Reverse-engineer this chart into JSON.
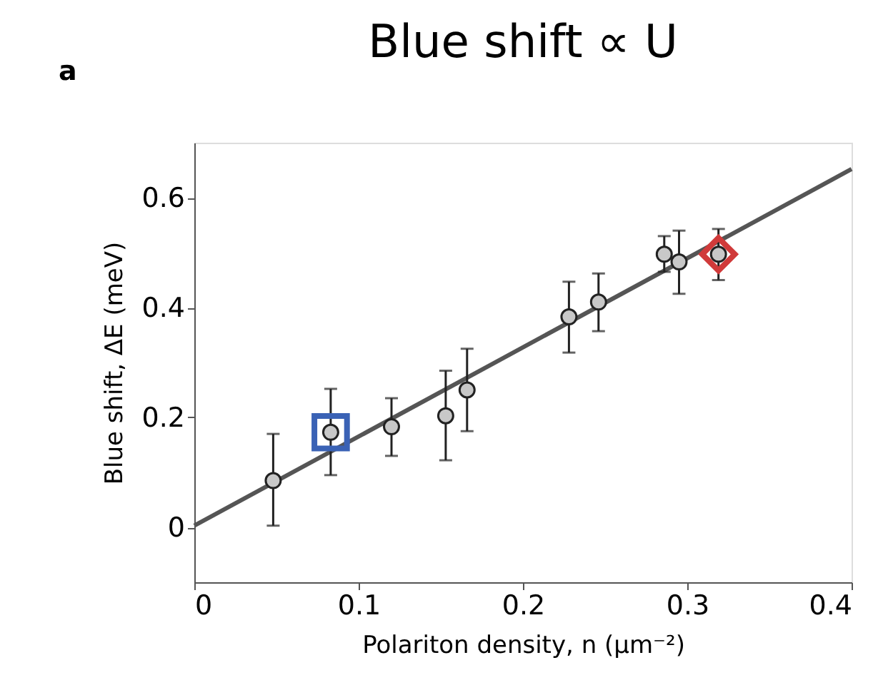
{
  "chart_data": {
    "type": "scatter",
    "title": "Blue shift ∝ U",
    "xlabel": "Polariton density, n (μm⁻²)",
    "ylabel": "Blue shift, ΔE (meV)",
    "annotations": [
      "a"
    ],
    "xlim": [
      0,
      0.4
    ],
    "xticks": [
      0,
      0.1,
      0.2,
      0.3,
      0.4
    ],
    "ylim": [
      -0.1,
      0.7
    ],
    "yticks": [
      0,
      0.2,
      0.4,
      0.6
    ],
    "grid": false,
    "series": [
      {
        "type": "line",
        "color": "#555555",
        "x": [
          0,
          0.4
        ],
        "values": [
          0.003,
          0.652
        ],
        "line_style": "solid"
      },
      {
        "color": "#c8c8c8",
        "marker": "circle",
        "x": [
          0.048,
          0.083,
          0.12,
          0.153,
          0.166,
          0.228,
          0.246,
          0.286,
          0.295,
          0.319
        ],
        "values": [
          0.085,
          0.173,
          0.183,
          0.203,
          0.25,
          0.383,
          0.41,
          0.497,
          0.483,
          0.497
        ],
        "errors": [
          [
            0.003,
            0.17
          ],
          [
            0.095,
            0.252
          ],
          [
            0.13,
            0.235
          ],
          [
            0.122,
            0.285
          ],
          [
            0.175,
            0.325
          ],
          [
            0.318,
            0.447
          ],
          [
            0.357,
            0.462
          ],
          [
            0.465,
            0.53
          ],
          [
            0.425,
            0.54
          ],
          [
            0.45,
            0.543
          ]
        ]
      },
      {
        "color": "#3a62b5",
        "marker": "square",
        "x": [
          0.083
        ],
        "values": [
          0.173
        ]
      },
      {
        "color": "#d03a3a",
        "marker": "diamond",
        "x": [
          0.319
        ],
        "values": [
          0.497
        ]
      }
    ]
  }
}
